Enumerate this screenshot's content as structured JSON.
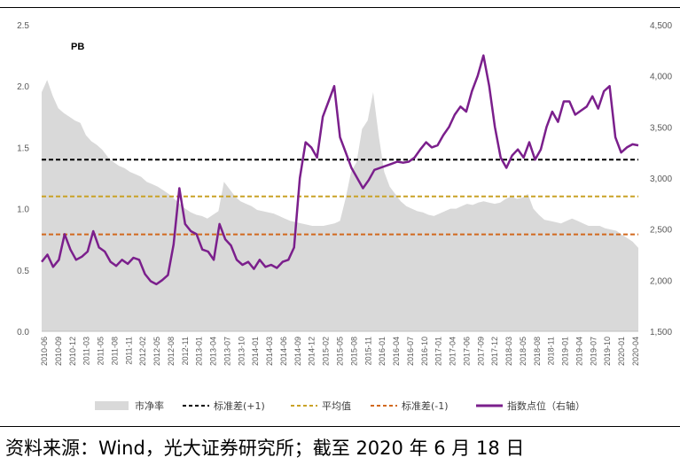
{
  "chart_data": {
    "type": "line",
    "title": "PB",
    "left_axis": {
      "ylim": [
        0.0,
        2.5
      ],
      "ticks": [
        "0.0",
        "0.5",
        "1.0",
        "1.5",
        "2.0",
        "2.5"
      ]
    },
    "right_axis": {
      "ylim": [
        1500,
        4500
      ],
      "ticks": [
        "1,500",
        "2,000",
        "2,500",
        "3,000",
        "3,500",
        "4,000",
        "4,500"
      ]
    },
    "x_ticks": [
      "2010-06",
      "2010-09",
      "2010-12",
      "2011-03",
      "2011-05",
      "2011-08",
      "2011-11",
      "2012-02",
      "2012-05",
      "2012-08",
      "2012-11",
      "2013-01",
      "2013-04",
      "2013-07",
      "2013-10",
      "2014-01",
      "2014-03",
      "2014-06",
      "2014-09",
      "2014-12",
      "2015-02",
      "2015-05",
      "2015-08",
      "2015-11",
      "2016-01",
      "2016-04",
      "2016-07",
      "2016-10",
      "2017-01",
      "2017-04",
      "2017-06",
      "2017-09",
      "2017-12",
      "2018-03",
      "2018-05",
      "2018-08",
      "2018-11",
      "2019-01",
      "2019-04",
      "2019-07",
      "2019-10",
      "2020-01",
      "2020-04"
    ],
    "reference_lines": [
      {
        "name": "标准差(+1)",
        "value": 1.4,
        "color": "#000000"
      },
      {
        "name": "平均值",
        "value": 1.1,
        "color": "#c9a227"
      },
      {
        "name": "标准差(-1)",
        "value": 0.79,
        "color": "#d2691e"
      }
    ],
    "series": [
      {
        "name": "市净率",
        "axis": "left",
        "color": "#d9d9d9",
        "values": [
          1.95,
          2.05,
          1.92,
          1.82,
          1.78,
          1.75,
          1.72,
          1.7,
          1.6,
          1.55,
          1.52,
          1.48,
          1.42,
          1.38,
          1.35,
          1.33,
          1.3,
          1.28,
          1.26,
          1.22,
          1.2,
          1.18,
          1.15,
          1.12,
          1.08,
          1.04,
          1.0,
          0.97,
          0.95,
          0.94,
          0.92,
          0.95,
          0.98,
          1.22,
          1.16,
          1.1,
          1.06,
          1.04,
          1.02,
          0.99,
          0.98,
          0.97,
          0.96,
          0.94,
          0.92,
          0.9,
          0.89,
          0.88,
          0.87,
          0.86,
          0.86,
          0.86,
          0.87,
          0.88,
          0.9,
          1.08,
          1.3,
          1.38,
          1.65,
          1.72,
          1.95,
          1.6,
          1.3,
          1.18,
          1.12,
          1.06,
          1.02,
          1.0,
          0.98,
          0.97,
          0.95,
          0.94,
          0.96,
          0.98,
          1.0,
          1.0,
          1.02,
          1.04,
          1.03,
          1.05,
          1.06,
          1.05,
          1.04,
          1.05,
          1.08,
          1.1,
          1.08,
          1.09,
          1.12,
          1.0,
          0.95,
          0.91,
          0.9,
          0.89,
          0.88,
          0.9,
          0.92,
          0.9,
          0.88,
          0.86,
          0.86,
          0.86,
          0.84,
          0.83,
          0.82,
          0.79,
          0.76,
          0.73,
          0.68
        ]
      },
      {
        "name": "指数点位（右轴）",
        "axis": "right",
        "color": "#7b1f8c",
        "values": [
          2180,
          2250,
          2130,
          2200,
          2450,
          2300,
          2200,
          2230,
          2280,
          2480,
          2320,
          2280,
          2180,
          2140,
          2200,
          2160,
          2220,
          2200,
          2060,
          1990,
          1960,
          2000,
          2050,
          2350,
          2900,
          2550,
          2480,
          2450,
          2300,
          2280,
          2200,
          2550,
          2400,
          2340,
          2200,
          2150,
          2180,
          2110,
          2200,
          2130,
          2150,
          2120,
          2180,
          2200,
          2320,
          3000,
          3350,
          3300,
          3200,
          3600,
          3750,
          3900,
          3400,
          3250,
          3100,
          3000,
          2900,
          2980,
          3080,
          3100,
          3120,
          3140,
          3160,
          3150,
          3160,
          3200,
          3280,
          3350,
          3300,
          3320,
          3420,
          3500,
          3620,
          3700,
          3650,
          3850,
          4000,
          4200,
          3900,
          3500,
          3200,
          3100,
          3220,
          3280,
          3200,
          3350,
          3180,
          3280,
          3500,
          3650,
          3550,
          3750,
          3750,
          3620,
          3660,
          3700,
          3800,
          3680,
          3850,
          3900,
          3400,
          3250,
          3300,
          3330,
          3320
        ]
      }
    ],
    "legend": {
      "position": "bottom"
    }
  },
  "source_note": "资料来源：Wind，光大证券研究所；截至 2020 年 6 月 18 日"
}
